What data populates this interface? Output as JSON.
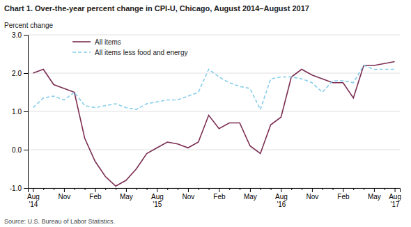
{
  "chart_data": {
    "type": "line",
    "title": "Chart 1. Over-the-year percent change in CPI-U, Chicago, August 2014–August  2017",
    "y_label": "Percent change",
    "source": "Source: U.S. Bureau of Labor Statistics.",
    "categories": [
      "Aug\n'14",
      null,
      null,
      "Nov",
      null,
      null,
      "Feb",
      null,
      null,
      "May",
      null,
      null,
      "Aug\n'15",
      null,
      null,
      "Nov",
      null,
      null,
      "Feb",
      null,
      null,
      "May",
      null,
      null,
      "Aug\n'16",
      null,
      null,
      "Nov",
      null,
      null,
      "Feb",
      null,
      null,
      "May",
      null,
      "Aug\n'17"
    ],
    "series": [
      {
        "name": "All items",
        "color": "#7B2D52",
        "line_style": "solid",
        "values": [
          2.0,
          2.1,
          1.7,
          1.6,
          1.5,
          0.3,
          -0.3,
          -0.7,
          -0.95,
          -0.8,
          -0.5,
          -0.1,
          0.05,
          0.2,
          0.15,
          0.05,
          0.2,
          0.9,
          0.55,
          0.7,
          0.7,
          0.1,
          -0.1,
          0.65,
          0.85,
          1.9,
          2.1,
          1.95,
          1.85,
          1.75,
          1.75,
          1.35,
          2.2,
          2.2,
          2.25,
          2.3
        ]
      },
      {
        "name": "All items less food and energy",
        "color": "#87CEEB",
        "line_style": "dashed",
        "values": [
          1.1,
          1.35,
          1.4,
          1.3,
          1.5,
          1.15,
          1.1,
          1.15,
          1.2,
          1.1,
          1.05,
          1.2,
          1.25,
          1.3,
          1.3,
          1.4,
          1.5,
          2.1,
          1.9,
          1.75,
          1.65,
          1.6,
          1.05,
          1.85,
          1.9,
          1.9,
          1.85,
          1.75,
          1.5,
          1.8,
          1.8,
          1.75,
          2.2,
          2.1,
          2.1,
          2.1
        ]
      }
    ],
    "ylim": [
      -1.0,
      3.0
    ],
    "yticks": [
      {
        "value": -1.0,
        "label": "-1.0"
      },
      {
        "value": 0.0,
        "label": "0.0"
      },
      {
        "value": 1.0,
        "label": "1.0"
      },
      {
        "value": 2.0,
        "label": "2.0"
      },
      {
        "value": 3.0,
        "label": "3.0"
      }
    ],
    "grid": true,
    "legend": "upper left"
  }
}
